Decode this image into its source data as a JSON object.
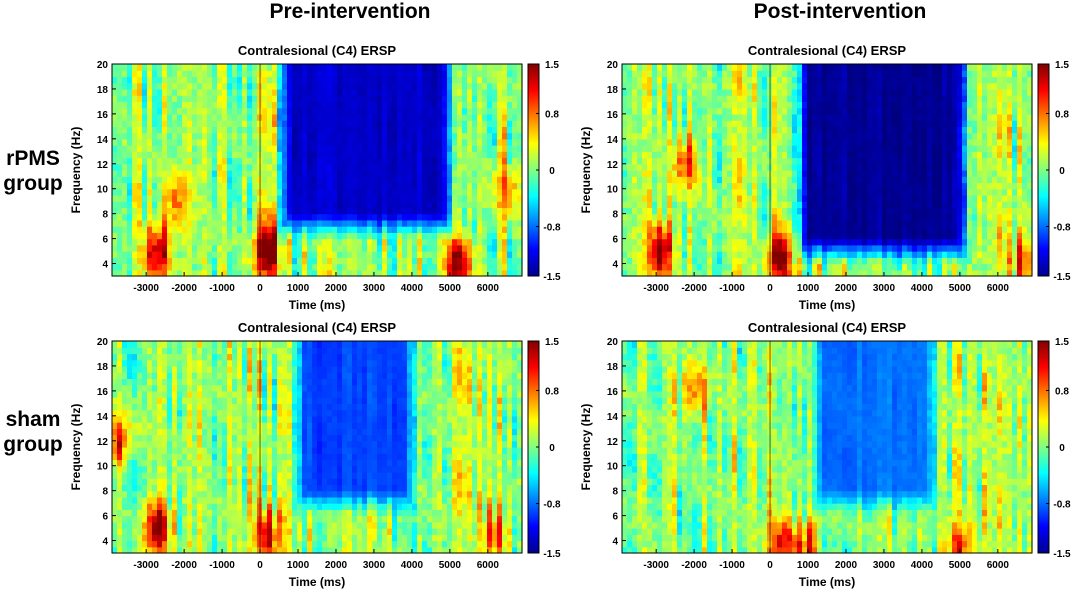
{
  "columns": [
    "Pre-intervention",
    "Post-intervention"
  ],
  "rows": [
    {
      "line1": "rPMS",
      "line2": "group"
    },
    {
      "line1": "sham",
      "line2": "group"
    }
  ],
  "chart_data": [
    {
      "type": "heatmap",
      "title": "Contralesional (C4) ERSP",
      "group": "rPMS",
      "condition": "Pre-intervention",
      "xlabel": "Time (ms)",
      "ylabel": "Frequency (Hz)",
      "xlim": [
        -3900,
        6900
      ],
      "ylim": [
        3,
        20
      ],
      "xticks": [
        -3000,
        -2000,
        -1000,
        0,
        1000,
        2000,
        3000,
        4000,
        5000,
        6000
      ],
      "yticks": [
        4,
        6,
        8,
        10,
        12,
        14,
        16,
        18,
        20
      ],
      "colorbar": {
        "min": -1.5,
        "max": 1.5,
        "ticks": [
          1.5,
          0.8,
          0,
          -0.8,
          -1.5
        ],
        "colormap": "jet"
      },
      "suppression": {
        "start": 400,
        "end": 5200,
        "low_freq": 8,
        "level": -1.3
      },
      "blobs": [
        {
          "t": -2700,
          "f": 5,
          "v": 1.4
        },
        {
          "t": 200,
          "f": 5,
          "v": 1.5
        },
        {
          "t": 5200,
          "f": 4,
          "v": 1.5
        },
        {
          "t": -2200,
          "f": 9,
          "v": 0.7
        },
        {
          "t": 6500,
          "f": 10,
          "v": 0.7
        }
      ],
      "seed": 11
    },
    {
      "type": "heatmap",
      "title": "Contralesional (C4) ERSP",
      "group": "rPMS",
      "condition": "Post-intervention",
      "xlabel": "Time (ms)",
      "ylabel": "Frequency (Hz)",
      "xlim": [
        -3900,
        6900
      ],
      "ylim": [
        3,
        20
      ],
      "xticks": [
        -3000,
        -2000,
        -1000,
        0,
        1000,
        2000,
        3000,
        4000,
        5000,
        6000
      ],
      "yticks": [
        4,
        6,
        8,
        10,
        12,
        14,
        16,
        18,
        20
      ],
      "colorbar": {
        "min": -1.5,
        "max": 1.5,
        "ticks": [
          1.5,
          0.8,
          0,
          -0.8,
          -1.5
        ],
        "colormap": "jet"
      },
      "suppression": {
        "start": 600,
        "end": 5300,
        "low_freq": 6,
        "level": -1.45
      },
      "blobs": [
        {
          "t": -2900,
          "f": 5,
          "v": 1.4
        },
        {
          "t": 300,
          "f": 4.5,
          "v": 1.5
        },
        {
          "t": -2200,
          "f": 12,
          "v": 0.9
        },
        {
          "t": 6700,
          "f": 4,
          "v": 0.8
        }
      ],
      "seed": 23
    },
    {
      "type": "heatmap",
      "title": "Contralesional (C4) ERSP",
      "group": "sham",
      "condition": "Pre-intervention",
      "xlabel": "Time (ms)",
      "ylabel": "Frequency (Hz)",
      "xlim": [
        -3900,
        6900
      ],
      "ylim": [
        3,
        20
      ],
      "xticks": [
        -3000,
        -2000,
        -1000,
        0,
        1000,
        2000,
        3000,
        4000,
        5000,
        6000
      ],
      "yticks": [
        4,
        6,
        8,
        10,
        12,
        14,
        16,
        18,
        20
      ],
      "colorbar": {
        "min": -1.5,
        "max": 1.5,
        "ticks": [
          1.5,
          0.8,
          0,
          -0.8,
          -1.5
        ],
        "colormap": "jet"
      },
      "suppression": {
        "start": 800,
        "end": 4200,
        "low_freq": 8,
        "level": -0.95
      },
      "blobs": [
        {
          "t": -2700,
          "f": 5,
          "v": 1.4
        },
        {
          "t": 200,
          "f": 4.5,
          "v": 1.2
        },
        {
          "t": -3700,
          "f": 12,
          "v": 1.0
        },
        {
          "t": 6200,
          "f": 4.5,
          "v": 0.8
        }
      ],
      "seed": 37
    },
    {
      "type": "heatmap",
      "title": "Contralesional (C4) ERSP",
      "group": "sham",
      "condition": "Post-intervention",
      "xlabel": "Time (ms)",
      "ylabel": "Frequency (Hz)",
      "xlim": [
        -3900,
        6900
      ],
      "ylim": [
        3,
        20
      ],
      "xticks": [
        -3000,
        -2000,
        -1000,
        0,
        1000,
        2000,
        3000,
        4000,
        5000,
        6000
      ],
      "yticks": [
        4,
        6,
        8,
        10,
        12,
        14,
        16,
        18,
        20
      ],
      "colorbar": {
        "min": -1.5,
        "max": 1.5,
        "ticks": [
          1.5,
          0.8,
          0,
          -0.8,
          -1.5
        ],
        "colormap": "jet"
      },
      "suppression": {
        "start": 1000,
        "end": 4500,
        "low_freq": 8,
        "level": -0.8
      },
      "blobs": [
        {
          "t": 300,
          "f": 4,
          "v": 1.1
        },
        {
          "t": -2000,
          "f": 16,
          "v": 0.9
        },
        {
          "t": 900,
          "f": 3.5,
          "v": 1.0
        },
        {
          "t": 5000,
          "f": 3.5,
          "v": 0.9
        }
      ],
      "seed": 53
    }
  ]
}
